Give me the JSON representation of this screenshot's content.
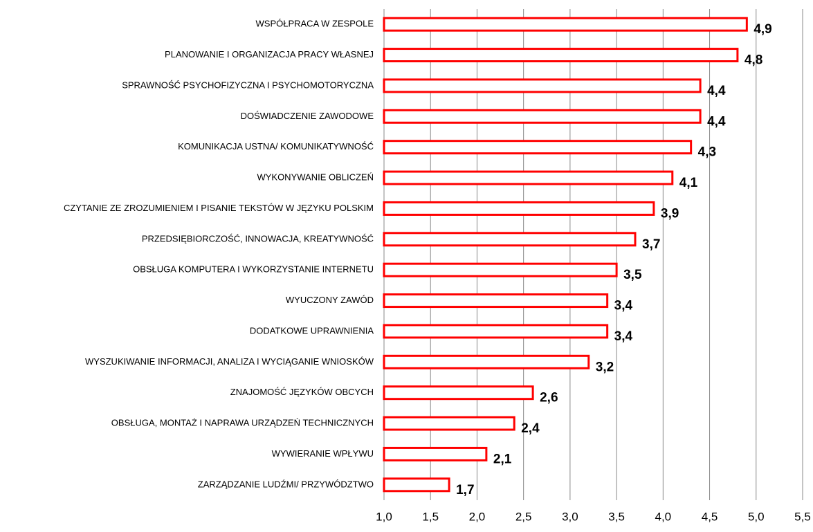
{
  "chart_data": {
    "type": "bar",
    "orientation": "horizontal",
    "categories": [
      "WSPÓŁPRACA W ZESPOLE",
      "PLANOWANIE I ORGANIZACJA PRACY WŁASNEJ",
      "SPRAWNOŚĆ PSYCHOFIZYCZNA I PSYCHOMOTORYCZNA",
      "DOŚWIADCZENIE ZAWODOWE",
      "KOMUNIKACJA USTNA/ KOMUNIKATYWNOŚĆ",
      "WYKONYWANIE OBLICZEŃ",
      "CZYTANIE ZE ZROZUMIENIEM I PISANIE TEKSTÓW W JĘZYKU POLSKIM",
      "PRZEDSIĘBIORCZOŚĆ, INNOWACJA, KREATYWNOŚĆ",
      "OBSŁUGA KOMPUTERA I WYKORZYSTANIE INTERNETU",
      "WYUCZONY ZAWÓD",
      "DODATKOWE UPRAWNIENIA",
      "WYSZUKIWANIE INFORMACJI, ANALIZA I WYCIĄGANIE WNIOSKÓW",
      "ZNAJOMOŚĆ JĘZYKÓW OBCYCH",
      "OBSŁUGA, MONTAŻ I NAPRAWA URZĄDZEŃ TECHNICZNYCH",
      "WYWIERANIE WPŁYWU",
      "ZARZĄDZANIE LUDŹMI/ PRZYWÓDZTWO"
    ],
    "values": [
      4.9,
      4.8,
      4.4,
      4.4,
      4.3,
      4.1,
      3.9,
      3.7,
      3.5,
      3.4,
      3.4,
      3.2,
      2.6,
      2.4,
      2.1,
      1.7
    ],
    "value_labels": [
      "4,9",
      "4,8",
      "4,4",
      "4,4",
      "4,3",
      "4,1",
      "3,9",
      "3,7",
      "3,5",
      "3,4",
      "3,4",
      "3,2",
      "2,6",
      "2,4",
      "2,1",
      "1,7"
    ],
    "color": "#ff0000",
    "xlim": [
      1.0,
      5.5
    ],
    "xticks": [
      {
        "value": 1.0,
        "label": "1,0"
      },
      {
        "value": 1.5,
        "label": "1,5"
      },
      {
        "value": 2.0,
        "label": "2,0"
      },
      {
        "value": 2.5,
        "label": "2,5"
      },
      {
        "value": 3.0,
        "label": "3,0"
      },
      {
        "value": 3.5,
        "label": "3,5"
      },
      {
        "value": 4.0,
        "label": "4,0"
      },
      {
        "value": 4.5,
        "label": "4,5"
      },
      {
        "value": 5.0,
        "label": "5,0"
      },
      {
        "value": 5.5,
        "label": "5,5"
      }
    ],
    "grid": true
  }
}
